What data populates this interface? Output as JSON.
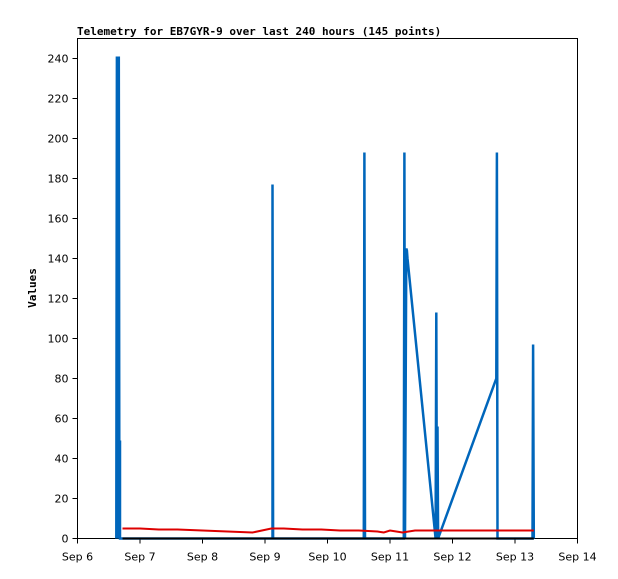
{
  "chart_data": {
    "type": "line",
    "title": "Telemetry for EB7GYR-9 over last 240 hours (145 points)",
    "xlabel": "",
    "ylabel": "Values",
    "x_ticks": [
      "Sep 6",
      "Sep 7",
      "Sep 8",
      "Sep 9",
      "Sep 10",
      "Sep 11",
      "Sep 12",
      "Sep 13",
      "Sep 14"
    ],
    "xlim": [
      0,
      8
    ],
    "ylim": [
      0,
      250
    ],
    "y_ticks": [
      0,
      20,
      40,
      60,
      80,
      100,
      120,
      140,
      160,
      180,
      200,
      220,
      240
    ],
    "grid": false,
    "colors": {
      "series_blue": "#0066bb",
      "series_red": "#dd0000",
      "series_black": "#000000"
    },
    "series": [
      {
        "color": "#0066bb",
        "x": [
          0.62,
          0.63,
          0.63,
          0.65,
          0.66,
          0.66,
          0.67,
          0.68,
          0.68,
          0.69,
          0.7,
          3.12,
          3.12,
          3.13,
          4.58,
          4.59,
          4.6,
          5.22,
          5.23,
          5.24,
          5.26,
          5.27,
          5.28,
          5.73,
          5.74,
          5.75,
          5.76,
          5.77,
          6.7,
          6.71,
          6.72,
          7.28,
          7.29,
          7.3
        ],
        "y": [
          0,
          241,
          0,
          241,
          0,
          241,
          0,
          49,
          0,
          0,
          0,
          0,
          177,
          0,
          0,
          193,
          0,
          0,
          193,
          0,
          145,
          144,
          140,
          0,
          113,
          0,
          56,
          0,
          80,
          193,
          0,
          0,
          97,
          0
        ]
      },
      {
        "color": "#dd0000",
        "x": [
          0.72,
          1.0,
          1.3,
          1.6,
          2.0,
          2.4,
          2.8,
          3.1,
          3.3,
          3.6,
          3.9,
          4.2,
          4.5,
          4.8,
          4.9,
          5.0,
          5.1,
          5.2,
          5.4,
          5.6,
          5.8,
          6.0,
          6.3,
          6.6,
          6.9,
          7.1,
          7.3
        ],
        "y": [
          5,
          5,
          4.5,
          4.5,
          4,
          3.5,
          3,
          5,
          5,
          4.5,
          4.5,
          4,
          4,
          3.5,
          3,
          4,
          3.5,
          3,
          4,
          4,
          4,
          4,
          4,
          4,
          4,
          4,
          4
        ]
      },
      {
        "color": "#000000",
        "x": [
          0.72,
          1.5,
          2.5,
          3.5,
          4.5,
          5.5,
          6.5,
          7.3
        ],
        "y": [
          0,
          0,
          0,
          0,
          0,
          0,
          0,
          0
        ]
      }
    ]
  }
}
